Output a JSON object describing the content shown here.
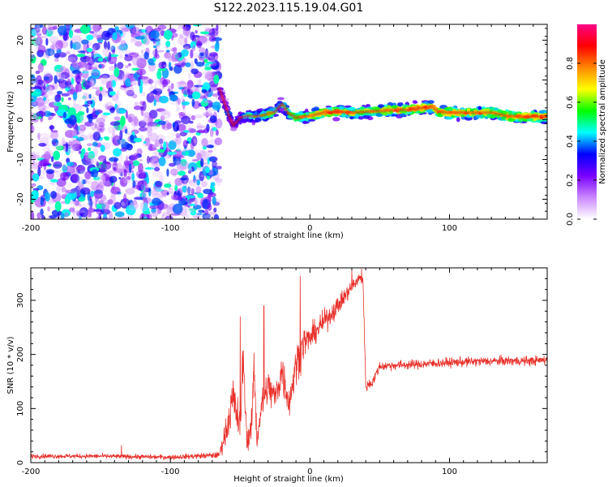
{
  "figure_title": "S122.2023.115.19.04.G01",
  "chart_data": [
    {
      "type": "heatmap",
      "xlabel": "Height of straight line (km)",
      "ylabel": "Frequency (Hz)",
      "xlim": [
        -200,
        170
      ],
      "ylim": [
        -25,
        24
      ],
      "xticks": [
        -200,
        -100,
        0,
        100
      ],
      "xtick_labels": [
        "-200",
        "-100",
        "0",
        "100"
      ],
      "yticks": [
        -20,
        -10,
        0,
        10,
        20
      ],
      "ytick_labels": [
        "-20",
        "-10",
        "0",
        "10",
        "20"
      ],
      "noise_region_x": [
        -200,
        -65
      ],
      "colorbar": {
        "label": "Normalized spectral amplitude",
        "range": [
          0,
          1
        ],
        "ticks": [
          0.0,
          0.2,
          0.4,
          0.6,
          0.8
        ],
        "tick_labels": [
          "0.0",
          "0.2",
          "0.4",
          "0.6",
          "0.8"
        ],
        "colors": [
          "#ffffff",
          "#cc88ff",
          "#7a00ff",
          "#0000ff",
          "#00ffff",
          "#00ff00",
          "#ffff00",
          "#ff8800",
          "#ff0000",
          "#ff0088"
        ]
      },
      "ridge": {
        "x": [
          -65,
          -62,
          -58,
          -55,
          -50,
          -45,
          -40,
          -35,
          -30,
          -25,
          -20,
          -15,
          -10,
          0,
          10,
          20,
          30,
          40,
          50,
          60,
          70,
          80,
          88,
          92,
          100,
          110,
          120,
          130,
          135,
          140,
          150,
          160,
          170
        ],
        "frequency": [
          8,
          5,
          1,
          -1.5,
          0.5,
          1,
          0.8,
          1,
          1.5,
          2,
          4,
          1.5,
          0.5,
          1,
          1.8,
          2,
          1.8,
          2,
          2.2,
          2.5,
          2.5,
          3,
          3.2,
          2,
          1.8,
          1.8,
          1.8,
          1.8,
          1.5,
          1,
          0.8,
          0.8,
          0.8
        ],
        "amplitude": [
          0.3,
          0.35,
          0.4,
          0.3,
          0.45,
          0.55,
          0.6,
          0.6,
          0.65,
          0.6,
          0.55,
          0.6,
          0.7,
          0.75,
          0.9,
          0.85,
          0.8,
          0.75,
          0.8,
          0.9,
          0.85,
          0.9,
          0.85,
          0.85,
          0.9,
          0.9,
          0.85,
          0.85,
          0.8,
          0.9,
          0.85,
          0.9,
          0.85
        ]
      }
    },
    {
      "type": "line",
      "xlabel": "Height of straight line (km)",
      "ylabel": "SNR (10 * v/v)",
      "xlim": [
        -200,
        170
      ],
      "ylim": [
        0,
        360
      ],
      "xticks": [
        -200,
        -100,
        0,
        100
      ],
      "xtick_labels": [
        "-200",
        "-100",
        "0",
        "100"
      ],
      "yticks": [
        0,
        100,
        200,
        300
      ],
      "ytick_labels": [
        "0",
        "100",
        "200",
        "300"
      ],
      "series": [
        {
          "color": "#e8302a",
          "x": [
            -200,
            -150,
            -100,
            -65,
            -60,
            -55,
            -50,
            -48,
            -45,
            -42,
            -40,
            -38,
            -35,
            -30,
            -25,
            -20,
            -15,
            -10,
            -5,
            0,
            10,
            20,
            30,
            35,
            38,
            40,
            45,
            50,
            60,
            80,
            100,
            120,
            140,
            160,
            170
          ],
          "mean": [
            12,
            12,
            10,
            14,
            60,
            120,
            60,
            200,
            40,
            60,
            180,
            40,
            100,
            140,
            120,
            170,
            110,
            180,
            220,
            230,
            260,
            290,
            325,
            340,
            340,
            140,
            150,
            178,
            180,
            182,
            185,
            187,
            188,
            188,
            190
          ],
          "spread": [
            6,
            6,
            6,
            8,
            40,
            60,
            50,
            60,
            30,
            40,
            60,
            30,
            40,
            50,
            40,
            60,
            40,
            50,
            50,
            30,
            30,
            25,
            20,
            15,
            15,
            15,
            15,
            12,
            12,
            12,
            12,
            12,
            12,
            12,
            12
          ],
          "peaks": [
            {
              "x": -135,
              "y": 32
            },
            {
              "x": -50,
              "y": 270
            },
            {
              "x": -33,
              "y": 290
            },
            {
              "x": -7,
              "y": 345
            },
            {
              "x": 30,
              "y": 355
            },
            {
              "x": 37,
              "y": 358
            }
          ]
        }
      ]
    }
  ]
}
